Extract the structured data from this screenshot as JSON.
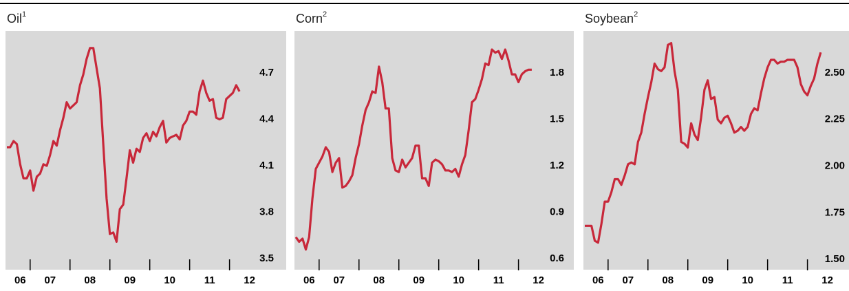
{
  "chart_data": [
    {
      "type": "line",
      "title": "Oil",
      "title_superscript": "1",
      "color": "#c8283a",
      "categories": [
        null,
        null,
        null,
        null,
        "06",
        null,
        null,
        null,
        null,
        null,
        null,
        null,
        null,
        "07",
        null,
        null,
        null,
        null,
        null,
        null,
        null,
        null,
        null,
        null,
        null,
        "08",
        null,
        null,
        null,
        null,
        null,
        null,
        null,
        null,
        null,
        null,
        null,
        "09",
        null,
        null,
        null,
        null,
        null,
        null,
        null,
        null,
        null,
        null,
        null,
        "10",
        null,
        null,
        null,
        null,
        null,
        null,
        null,
        null,
        null,
        null,
        null,
        "11",
        null,
        null,
        null,
        null,
        null,
        null,
        null,
        null,
        null,
        null,
        null,
        "12",
        null,
        null
      ],
      "values": [
        4.22,
        4.22,
        4.26,
        4.24,
        4.11,
        4.02,
        4.02,
        4.07,
        3.94,
        4.03,
        4.05,
        4.11,
        4.1,
        4.17,
        4.26,
        4.23,
        4.33,
        4.41,
        4.51,
        4.47,
        4.49,
        4.51,
        4.62,
        4.69,
        4.79,
        4.86,
        4.86,
        4.73,
        4.6,
        4.24,
        3.89,
        3.66,
        3.67,
        3.61,
        3.82,
        3.85,
        4.02,
        4.2,
        4.12,
        4.21,
        4.19,
        4.28,
        4.31,
        4.26,
        4.32,
        4.29,
        4.35,
        4.39,
        4.25,
        4.28,
        4.29,
        4.3,
        4.27,
        4.36,
        4.39,
        4.45,
        4.45,
        4.43,
        4.58,
        4.65,
        4.57,
        4.52,
        4.53,
        4.41,
        4.4,
        4.41,
        4.53,
        4.55,
        4.57,
        4.62,
        4.58,
        null,
        null,
        null,
        null,
        null
      ],
      "ylim": [
        3.43,
        4.97
      ],
      "yticks": [
        3.5,
        3.8,
        4.1,
        4.4,
        4.7
      ]
    },
    {
      "type": "line",
      "title": "Corn",
      "title_superscript": "2",
      "color": "#c8283a",
      "categories": [
        null,
        null,
        null,
        null,
        "06",
        null,
        null,
        null,
        null,
        null,
        null,
        null,
        null,
        "07",
        null,
        null,
        null,
        null,
        null,
        null,
        null,
        null,
        null,
        null,
        null,
        "08",
        null,
        null,
        null,
        null,
        null,
        null,
        null,
        null,
        null,
        null,
        null,
        "09",
        null,
        null,
        null,
        null,
        null,
        null,
        null,
        null,
        null,
        null,
        null,
        "10",
        null,
        null,
        null,
        null,
        null,
        null,
        null,
        null,
        null,
        null,
        null,
        "11",
        null,
        null,
        null,
        null,
        null,
        null,
        null,
        null,
        null,
        null,
        null,
        "12",
        null,
        null
      ],
      "values": [
        0.74,
        0.71,
        0.73,
        0.66,
        0.74,
        0.99,
        1.18,
        1.22,
        1.26,
        1.32,
        1.29,
        1.16,
        1.22,
        1.25,
        1.06,
        1.07,
        1.1,
        1.14,
        1.25,
        1.34,
        1.46,
        1.56,
        1.61,
        1.68,
        1.67,
        1.84,
        1.74,
        1.57,
        1.57,
        1.25,
        1.17,
        1.16,
        1.24,
        1.19,
        1.22,
        1.25,
        1.33,
        1.33,
        1.12,
        1.12,
        1.07,
        1.22,
        1.24,
        1.23,
        1.21,
        1.17,
        1.17,
        1.16,
        1.18,
        1.13,
        1.21,
        1.27,
        1.43,
        1.61,
        1.63,
        1.69,
        1.76,
        1.86,
        1.85,
        1.95,
        1.93,
        1.94,
        1.89,
        1.95,
        1.88,
        1.79,
        1.79,
        1.74,
        1.79,
        1.81,
        1.82,
        1.82,
        null,
        null,
        null,
        null
      ],
      "ylim": [
        0.53,
        2.07
      ],
      "yticks": [
        0.6,
        0.9,
        1.2,
        1.5,
        1.8
      ]
    },
    {
      "type": "line",
      "title": "Soybean",
      "title_superscript": "2",
      "color": "#c8283a",
      "categories": [
        null,
        null,
        null,
        null,
        "06",
        null,
        null,
        null,
        null,
        null,
        null,
        null,
        null,
        "07",
        null,
        null,
        null,
        null,
        null,
        null,
        null,
        null,
        null,
        null,
        null,
        "08",
        null,
        null,
        null,
        null,
        null,
        null,
        null,
        null,
        null,
        null,
        null,
        "09",
        null,
        null,
        null,
        null,
        null,
        null,
        null,
        null,
        null,
        null,
        null,
        "10",
        null,
        null,
        null,
        null,
        null,
        null,
        null,
        null,
        null,
        null,
        null,
        "11",
        null,
        null,
        null,
        null,
        null,
        null,
        null,
        null,
        null,
        null,
        null,
        "12",
        null,
        null
      ],
      "values": [
        1.68,
        1.68,
        1.68,
        1.6,
        1.59,
        1.69,
        1.81,
        1.81,
        1.86,
        1.93,
        1.93,
        1.9,
        1.95,
        2.01,
        2.02,
        2.01,
        2.13,
        2.18,
        2.28,
        2.37,
        2.45,
        2.55,
        2.52,
        2.51,
        2.53,
        2.65,
        2.66,
        2.51,
        2.41,
        2.13,
        2.12,
        2.1,
        2.23,
        2.17,
        2.14,
        2.26,
        2.41,
        2.46,
        2.36,
        2.37,
        2.25,
        2.23,
        2.26,
        2.27,
        2.23,
        2.18,
        2.19,
        2.21,
        2.19,
        2.21,
        2.28,
        2.31,
        2.3,
        2.39,
        2.47,
        2.53,
        2.57,
        2.57,
        2.55,
        2.56,
        2.56,
        2.57,
        2.57,
        2.57,
        2.53,
        2.44,
        2.4,
        2.38,
        2.43,
        2.47,
        2.55,
        2.61,
        null,
        null,
        null,
        null
      ],
      "ylim": [
        1.445,
        2.725
      ],
      "yticks": [
        {
          "value": 1.5,
          "label": "1.50"
        },
        {
          "value": 1.75,
          "label": "1.75"
        },
        {
          "value": 2.0,
          "label": "2.00"
        },
        {
          "value": 2.25,
          "label": "2.25"
        },
        {
          "value": 2.5,
          "label": "2.50"
        }
      ]
    }
  ]
}
